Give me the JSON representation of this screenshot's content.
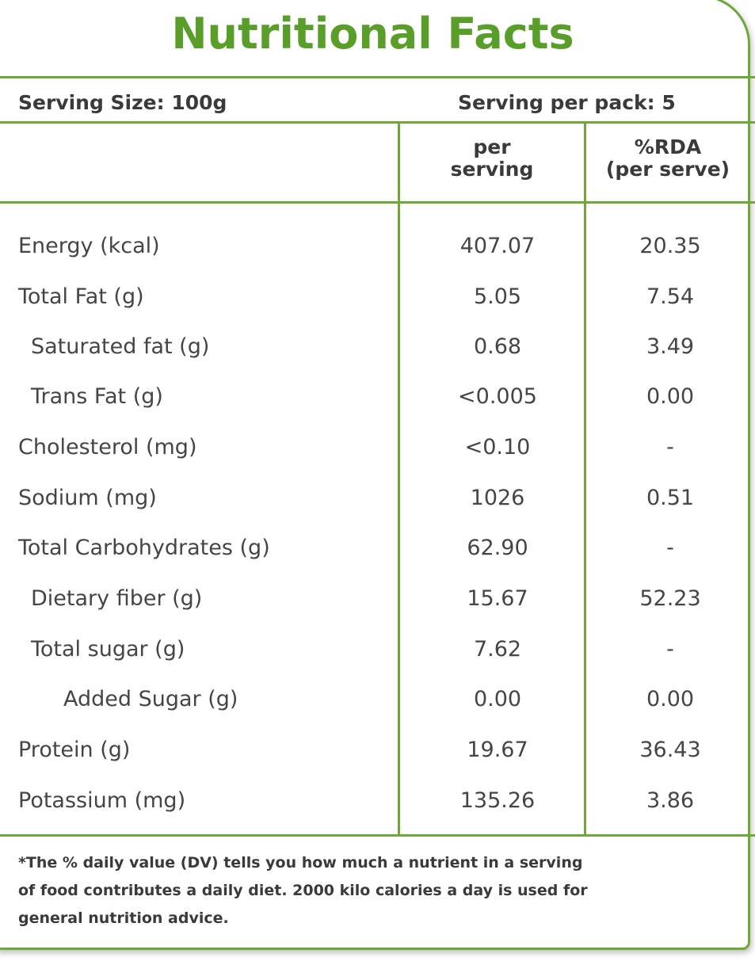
{
  "title": "Nutritional Facts",
  "serving": {
    "size": "Serving Size: 100g",
    "per_pack": "Serving per pack: 5"
  },
  "columns": {
    "per_serving_line1": "per",
    "per_serving_line2": "serving",
    "rda_line1": "%RDA",
    "rda_line2": "(per serve)"
  },
  "rows": [
    {
      "name": "Energy (kcal)",
      "per_serving": "407.07",
      "rda": "20.35"
    },
    {
      "name": "Total Fat (g)",
      "per_serving": "5.05",
      "rda": "7.54"
    },
    {
      "name": "Saturated fat (g)",
      "per_serving": "0.68",
      "rda": "3.49"
    },
    {
      "name": "Trans Fat (g)",
      "per_serving": "<0.005",
      "rda": "0.00"
    },
    {
      "name": "Cholesterol (mg)",
      "per_serving": "<0.10",
      "rda": "-"
    },
    {
      "name": "Sodium (mg)",
      "per_serving": "1026",
      "rda": "0.51"
    },
    {
      "name": "Total Carbohydrates  (g)",
      "per_serving": "62.90",
      "rda": "-"
    },
    {
      "name": "Dietary fiber (g)",
      "per_serving": "15.67",
      "rda": "52.23"
    },
    {
      "name": "Total sugar (g)",
      "per_serving": "7.62",
      "rda": "-"
    },
    {
      "name": "Added Sugar (g)",
      "per_serving": "0.00",
      "rda": "0.00"
    },
    {
      "name": "Protein (g)",
      "per_serving": "19.67",
      "rda": "36.43"
    },
    {
      "name": "Potassium (mg)",
      "per_serving": "135.26",
      "rda": "3.86"
    }
  ],
  "footnote": {
    "line1": "*The % daily value (DV) tells you how much a nutrient in a serving",
    "line2": "of food contributes a daily diet. 2000 kilo calories a day is used for",
    "line3": "general nutrition advice."
  },
  "colors": {
    "accent": "#6ea83a",
    "title": "#5a9e2a",
    "text": "#454545"
  }
}
